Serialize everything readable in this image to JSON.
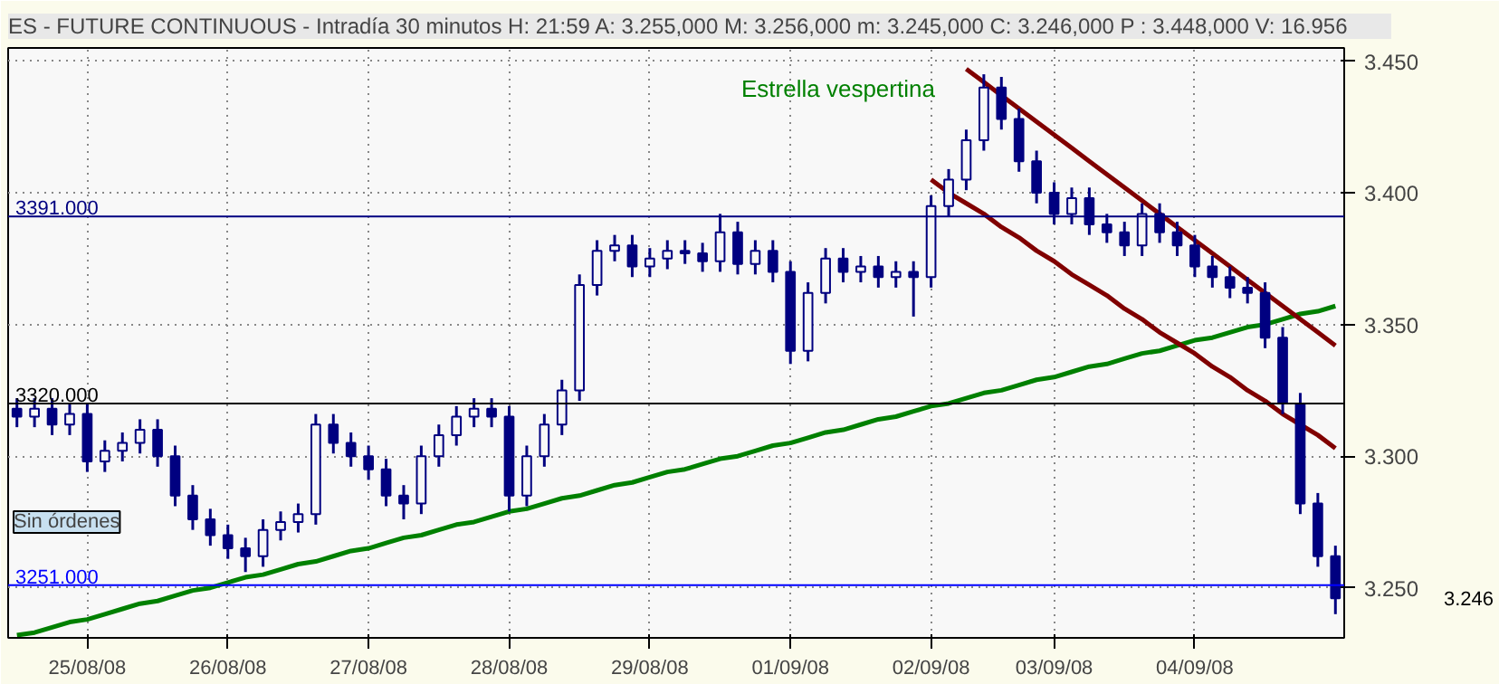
{
  "chart_data": {
    "type": "candlestick",
    "title": "ES - FUTURE CONTINUOUS - Intradía 30 minutos  H: 21:59  A: 3.255,000  M: 3.256,000  m: 3.245,000  C: 3.246,000  P : 3.448,000  V: 16.956",
    "categories": [
      null,
      null,
      null,
      null,
      "25/08/08",
      null,
      null,
      null,
      null,
      null,
      null,
      null,
      "26/08/08",
      null,
      null,
      null,
      null,
      null,
      null,
      null,
      "27/08/08",
      null,
      null,
      null,
      null,
      null,
      null,
      null,
      "28/08/08",
      null,
      null,
      null,
      null,
      null,
      null,
      null,
      "29/08/08",
      null,
      null,
      null,
      null,
      null,
      null,
      null,
      "01/09/08",
      null,
      null,
      null,
      null,
      null,
      null,
      null,
      "02/09/08",
      null,
      null,
      null,
      null,
      null,
      null,
      "03/09/08",
      null,
      null,
      null,
      null,
      null,
      null,
      null,
      "04/09/08",
      null,
      null,
      null,
      null,
      null,
      null,
      null,
      null
    ],
    "ohlc": [
      [
        3.318,
        3.322,
        3.311,
        3.315
      ],
      [
        3.315,
        3.322,
        3.311,
        3.318
      ],
      [
        3.318,
        3.322,
        3.308,
        3.312
      ],
      [
        3.312,
        3.32,
        3.308,
        3.316
      ],
      [
        3.316,
        3.32,
        3.294,
        3.298
      ],
      [
        3.298,
        3.306,
        3.294,
        3.302
      ],
      [
        3.302,
        3.309,
        3.298,
        3.305
      ],
      [
        3.305,
        3.314,
        3.301,
        3.31
      ],
      [
        3.31,
        3.314,
        3.296,
        3.3
      ],
      [
        3.3,
        3.304,
        3.281,
        3.285
      ],
      [
        3.285,
        3.289,
        3.272,
        3.276
      ],
      [
        3.276,
        3.28,
        3.266,
        3.27
      ],
      [
        3.27,
        3.274,
        3.261,
        3.265
      ],
      [
        3.265,
        3.269,
        3.256,
        3.262
      ],
      [
        3.262,
        3.276,
        3.258,
        3.272
      ],
      [
        3.272,
        3.279,
        3.268,
        3.275
      ],
      [
        3.275,
        3.282,
        3.271,
        3.278
      ],
      [
        3.278,
        3.316,
        3.274,
        3.312
      ],
      [
        3.312,
        3.316,
        3.301,
        3.305
      ],
      [
        3.305,
        3.309,
        3.296,
        3.3
      ],
      [
        3.3,
        3.304,
        3.291,
        3.295
      ],
      [
        3.295,
        3.299,
        3.281,
        3.285
      ],
      [
        3.285,
        3.289,
        3.276,
        3.282
      ],
      [
        3.282,
        3.304,
        3.278,
        3.3
      ],
      [
        3.3,
        3.312,
        3.296,
        3.308
      ],
      [
        3.308,
        3.319,
        3.304,
        3.315
      ],
      [
        3.315,
        3.322,
        3.311,
        3.318
      ],
      [
        3.318,
        3.322,
        3.311,
        3.315
      ],
      [
        3.315,
        3.319,
        3.279,
        3.285
      ],
      [
        3.285,
        3.304,
        3.281,
        3.3
      ],
      [
        3.3,
        3.316,
        3.296,
        3.312
      ],
      [
        3.312,
        3.329,
        3.308,
        3.325
      ],
      [
        3.325,
        3.369,
        3.321,
        3.365
      ],
      [
        3.365,
        3.382,
        3.361,
        3.378
      ],
      [
        3.378,
        3.384,
        3.374,
        3.38
      ],
      [
        3.38,
        3.384,
        3.368,
        3.372
      ],
      [
        3.372,
        3.379,
        3.368,
        3.375
      ],
      [
        3.375,
        3.382,
        3.371,
        3.378
      ],
      [
        3.378,
        3.382,
        3.373,
        3.377
      ],
      [
        3.377,
        3.381,
        3.37,
        3.374
      ],
      [
        3.374,
        3.392,
        3.37,
        3.385
      ],
      [
        3.385,
        3.389,
        3.369,
        3.373
      ],
      [
        3.373,
        3.382,
        3.369,
        3.378
      ],
      [
        3.378,
        3.382,
        3.366,
        3.37
      ],
      [
        3.37,
        3.374,
        3.335,
        3.34
      ],
      [
        3.34,
        3.366,
        3.336,
        3.362
      ],
      [
        3.362,
        3.379,
        3.358,
        3.375
      ],
      [
        3.375,
        3.379,
        3.366,
        3.37
      ],
      [
        3.37,
        3.376,
        3.366,
        3.372
      ],
      [
        3.372,
        3.376,
        3.364,
        3.368
      ],
      [
        3.368,
        3.374,
        3.364,
        3.37
      ],
      [
        3.37,
        3.374,
        3.353,
        3.368
      ],
      [
        3.368,
        3.399,
        3.364,
        3.395
      ],
      [
        3.395,
        3.409,
        3.391,
        3.405
      ],
      [
        3.405,
        3.424,
        3.401,
        3.42
      ],
      [
        3.42,
        3.445,
        3.416,
        3.44
      ],
      [
        3.44,
        3.444,
        3.424,
        3.428
      ],
      [
        3.428,
        3.432,
        3.408,
        3.412
      ],
      [
        3.412,
        3.416,
        3.396,
        3.4
      ],
      [
        3.4,
        3.404,
        3.388,
        3.392
      ],
      [
        3.392,
        3.402,
        3.388,
        3.398
      ],
      [
        3.398,
        3.402,
        3.384,
        3.388
      ],
      [
        3.388,
        3.392,
        3.381,
        3.385
      ],
      [
        3.385,
        3.389,
        3.376,
        3.38
      ],
      [
        3.38,
        3.396,
        3.376,
        3.392
      ],
      [
        3.392,
        3.396,
        3.381,
        3.385
      ],
      [
        3.385,
        3.389,
        3.376,
        3.38
      ],
      [
        3.38,
        3.384,
        3.368,
        3.372
      ],
      [
        3.372,
        3.376,
        3.364,
        3.368
      ],
      [
        3.368,
        3.372,
        3.36,
        3.364
      ],
      [
        3.364,
        3.368,
        3.358,
        3.362
      ],
      [
        3.362,
        3.366,
        3.341,
        3.345
      ],
      [
        3.345,
        3.349,
        3.316,
        3.32
      ],
      [
        3.32,
        3.324,
        3.278,
        3.282
      ],
      [
        3.282,
        3.286,
        3.258,
        3.262
      ],
      [
        3.262,
        3.266,
        3.24,
        3.246
      ]
    ],
    "color": "#000080",
    "series": [
      {
        "type": "line",
        "color": "#008000",
        "values": [
          3.232,
          3.233,
          3.235,
          3.237,
          3.238,
          3.24,
          3.242,
          3.244,
          3.245,
          3.247,
          3.249,
          3.25,
          3.252,
          3.254,
          3.255,
          3.257,
          3.259,
          3.26,
          3.262,
          3.264,
          3.265,
          3.267,
          3.269,
          3.27,
          3.272,
          3.274,
          3.275,
          3.277,
          3.279,
          3.28,
          3.282,
          3.284,
          3.285,
          3.287,
          3.289,
          3.29,
          3.292,
          3.294,
          3.295,
          3.297,
          3.299,
          3.3,
          3.302,
          3.304,
          3.305,
          3.307,
          3.309,
          3.31,
          3.312,
          3.314,
          3.315,
          3.317,
          3.319,
          3.32,
          3.322,
          3.324,
          3.325,
          3.327,
          3.329,
          3.33,
          3.332,
          3.334,
          3.335,
          3.337,
          3.339,
          3.34,
          3.342,
          3.344,
          3.345,
          3.347,
          3.349,
          3.35,
          3.352,
          3.354,
          3.355,
          3.357
        ]
      },
      {
        "type": "line",
        "color": "#800000",
        "values": [
          null,
          null,
          null,
          null,
          null,
          null,
          null,
          null,
          null,
          null,
          null,
          null,
          null,
          null,
          null,
          null,
          null,
          null,
          null,
          null,
          null,
          null,
          null,
          null,
          null,
          null,
          null,
          null,
          null,
          null,
          null,
          null,
          null,
          null,
          null,
          null,
          null,
          null,
          null,
          null,
          null,
          null,
          null,
          null,
          null,
          null,
          null,
          null,
          null,
          null,
          null,
          null,
          null,
          null,
          3.447,
          3.442,
          3.437,
          3.432,
          3.427,
          3.422,
          3.417,
          3.412,
          3.407,
          3.402,
          3.397,
          3.392,
          3.387,
          3.382,
          3.377,
          3.372,
          3.367,
          3.362,
          3.357,
          3.352,
          3.347,
          3.342
        ]
      },
      {
        "type": "line",
        "color": "#800000",
        "values": [
          null,
          null,
          null,
          null,
          null,
          null,
          null,
          null,
          null,
          null,
          null,
          null,
          null,
          null,
          null,
          null,
          null,
          null,
          null,
          null,
          null,
          null,
          null,
          null,
          null,
          null,
          null,
          null,
          null,
          null,
          null,
          null,
          null,
          null,
          null,
          null,
          null,
          null,
          null,
          null,
          null,
          null,
          null,
          null,
          null,
          null,
          null,
          null,
          null,
          null,
          null,
          null,
          3.405,
          3.4,
          3.396,
          3.392,
          3.387,
          3.383,
          3.378,
          3.374,
          3.369,
          3.365,
          3.361,
          3.356,
          3.352,
          3.347,
          3.343,
          3.339,
          3.334,
          3.33,
          3.325,
          3.321,
          3.316,
          3.312,
          3.308,
          3.303
        ]
      }
    ],
    "ref_lines": [
      {
        "axis": "y",
        "value": 3.391,
        "label": "3391.000",
        "color": "#000080"
      },
      {
        "axis": "y",
        "value": 3.32,
        "label": "3320.000",
        "color": "#000000"
      },
      {
        "axis": "y",
        "value": 3.251,
        "label": "3251.000",
        "color": "#0000ff"
      }
    ],
    "annotations": [
      "Estrella vespertina",
      "3.246",
      "Sin órdenes"
    ],
    "ylim": [
      3.231,
      3.455
    ],
    "yticks": [
      {
        "value": 3.25,
        "label": "3.250"
      },
      {
        "value": 3.3,
        "label": "3.300"
      },
      {
        "value": 3.35,
        "label": "3.350"
      },
      {
        "value": 3.4,
        "label": "3.400"
      },
      {
        "value": 3.45,
        "label": "3.450"
      }
    ],
    "grid": true
  }
}
